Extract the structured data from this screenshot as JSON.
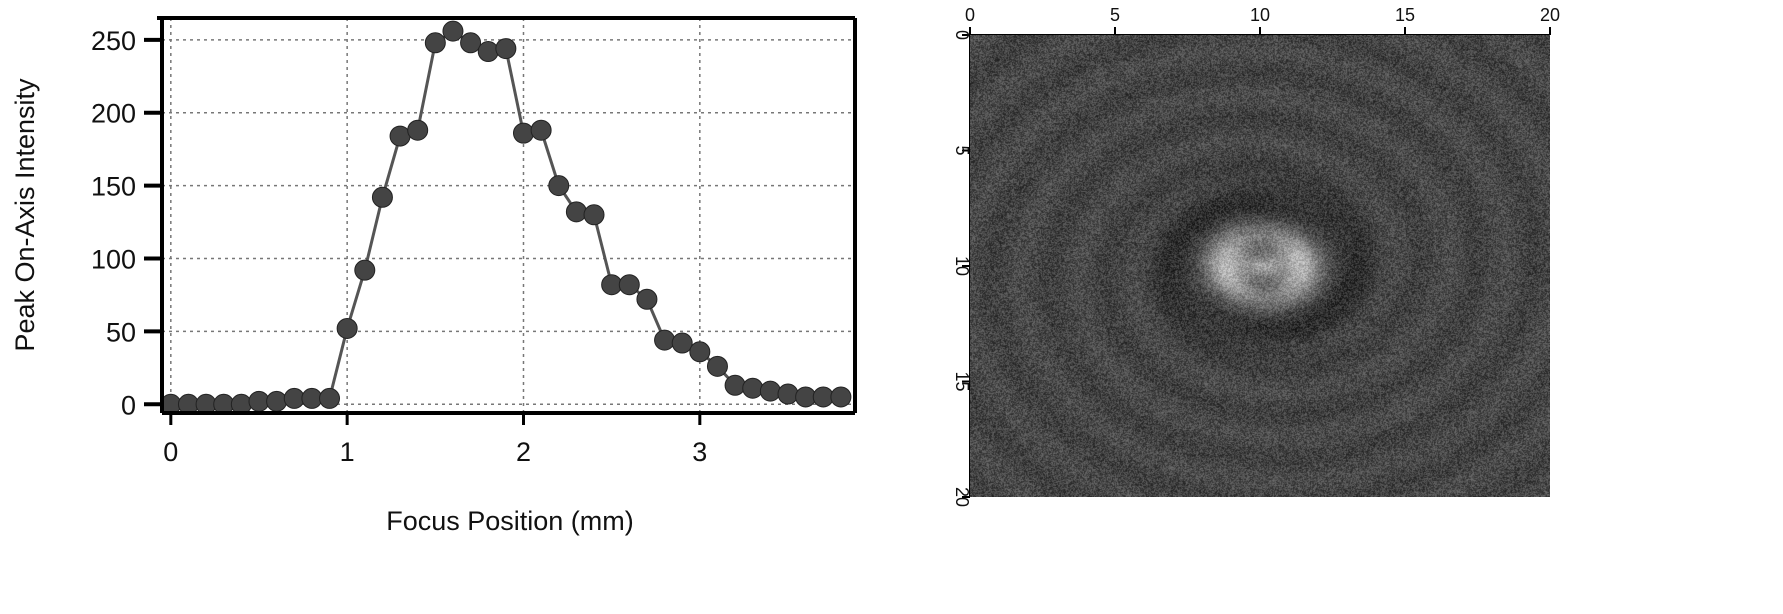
{
  "chart_data": [
    {
      "type": "line",
      "title": "",
      "xlabel": "Focus Position (mm)",
      "ylabel": "Peak On-Axis Intensity",
      "xlim": [
        -0.05,
        3.88
      ],
      "ylim": [
        -6,
        265
      ],
      "xticks": [
        0,
        1,
        2,
        3
      ],
      "yticks": [
        0,
        50,
        100,
        150,
        200,
        250
      ],
      "grid": true,
      "legend": "none",
      "series": [
        {
          "name": "Peak On-Axis Intensity",
          "marker": "circle",
          "color": "#444444",
          "x": [
            0,
            0.1,
            0.2,
            0.3,
            0.4,
            0.5,
            0.6,
            0.7,
            0.8,
            0.9,
            1.0,
            1.1,
            1.2,
            1.3,
            1.4,
            1.5,
            1.6,
            1.7,
            1.8,
            1.9,
            2.0,
            2.1,
            2.2,
            2.3,
            2.4,
            2.5,
            2.6,
            2.7,
            2.8,
            2.9,
            3.0,
            3.1,
            3.2,
            3.3,
            3.4,
            3.5,
            3.6,
            3.7,
            3.8
          ],
          "y": [
            0,
            0,
            0,
            0,
            0,
            2,
            2,
            4,
            4,
            4,
            52,
            92,
            142,
            184,
            188,
            248,
            256,
            248,
            242,
            244,
            186,
            188,
            150,
            132,
            130,
            82,
            82,
            72,
            44,
            42,
            36,
            26,
            13,
            11,
            9,
            7,
            5,
            5,
            5
          ]
        }
      ]
    },
    {
      "type": "heatmap",
      "title": "",
      "xlim": [
        0,
        20
      ],
      "ylim": [
        0,
        20
      ],
      "xticks": [
        0,
        5,
        10,
        15,
        20
      ],
      "yticks": [
        0,
        5,
        10,
        15,
        20
      ],
      "x_axis_position": "top",
      "y_axis_position": "left",
      "colormap": "grayscale"
    }
  ]
}
